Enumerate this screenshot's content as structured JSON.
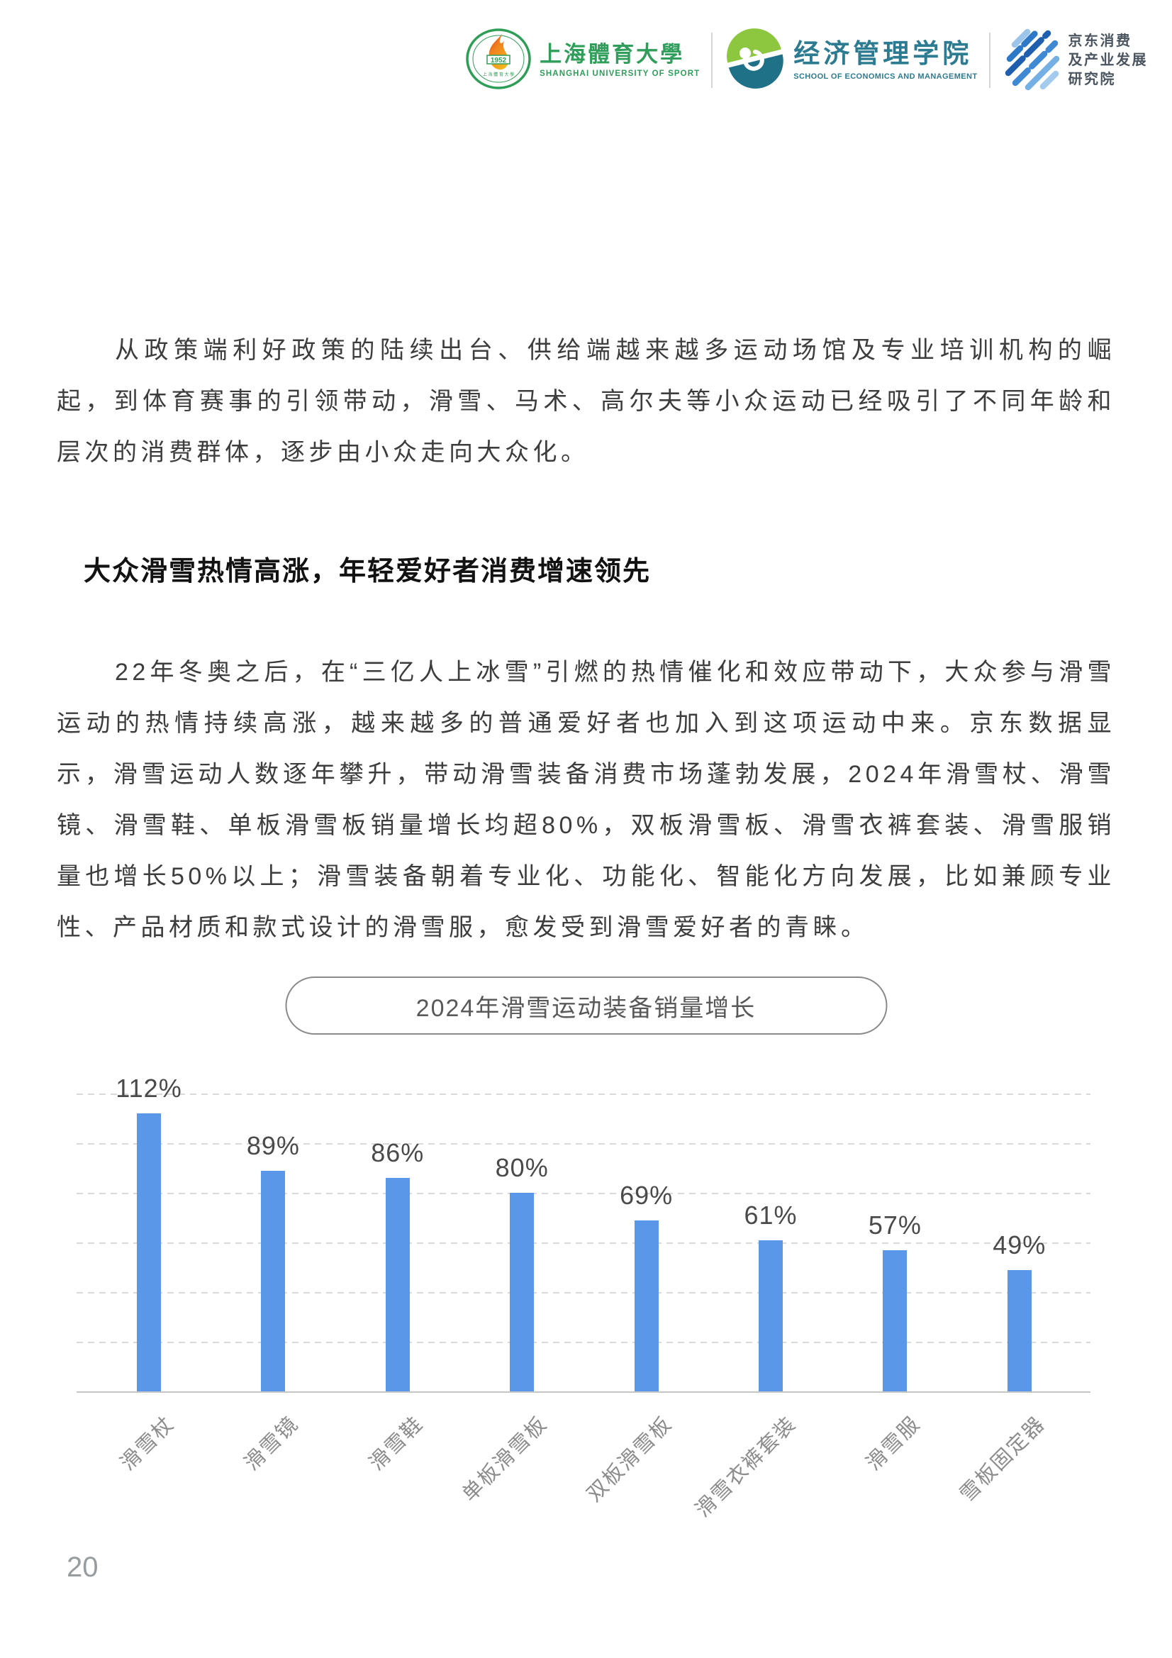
{
  "header": {
    "logos": [
      {
        "name": "shanghai-university-of-sport",
        "zh": "上海體育大學",
        "en": "SHANGHAI UNIVERSITY OF SPORT",
        "emblem_year": "1952",
        "color": "#2f9e5a"
      },
      {
        "name": "school-of-economics-and-management",
        "zh": "经济管理学院",
        "en": "SCHOOL OF ECONOMICS AND MANAGEMENT",
        "color": "#2d7b91"
      },
      {
        "name": "jd-consumption-industry-institute",
        "lines": [
          "京东消费",
          "及产业发展",
          "研究院"
        ],
        "color": "#4a5560"
      }
    ]
  },
  "intro_paragraph": "从政策端利好政策的陆续出台、供给端越来越多运动场馆及专业培训机构的崛起，到体育赛事的引领带动，滑雪、马术、高尔夫等小众运动已经吸引了不同年龄和层次的消费群体，逐步由小众走向大众化。",
  "section_heading": "大众滑雪热情高涨，年轻爱好者消费增速领先",
  "body_paragraph": "22年冬奥之后，在“三亿人上冰雪”引燃的热情催化和效应带动下，大众参与滑雪运动的热情持续高涨，越来越多的普通爱好者也加入到这项运动中来。京东数据显示，滑雪运动人数逐年攀升，带动滑雪装备消费市场蓬勃发展，2024年滑雪杖、滑雪镜、滑雪鞋、单板滑雪板销量增长均超80%，双板滑雪板、滑雪衣裤套装、滑雪服销量也增长50%以上；滑雪装备朝着专业化、功能化、智能化方向发展，比如兼顾专业性、产品材质和款式设计的滑雪服，愈发受到滑雪爱好者的青睐。",
  "chart_data": {
    "type": "bar",
    "title": "2024年滑雪运动装备销量增长",
    "categories": [
      "滑雪杖",
      "滑雪镜",
      "滑雪鞋",
      "单板滑雪板",
      "双板滑雪板",
      "滑雪衣裤套装",
      "滑雪服",
      "雪板固定器"
    ],
    "values": [
      112,
      89,
      86,
      80,
      69,
      61,
      57,
      49
    ],
    "value_labels": [
      "112%",
      "89%",
      "86%",
      "80%",
      "69%",
      "61%",
      "57%",
      "49%"
    ],
    "unit": "%",
    "ylim": [
      0,
      120
    ],
    "grid_step": 20,
    "grid": "dashed horizontal, no y tick labels",
    "legend": "none",
    "bar_color": "#5a97e8",
    "xlabel": "",
    "ylabel": ""
  },
  "page_number": "20",
  "colors": {
    "body_text": "#3d3d3d",
    "heading_text": "#121212",
    "chart_title_text": "#595959",
    "chart_value_label": "#4a4a4a",
    "chart_axis_label": "#8c8c8c",
    "gridline": "#d9d9d9",
    "axis_line": "#c6c6c6",
    "page_number": "#979c9e"
  }
}
